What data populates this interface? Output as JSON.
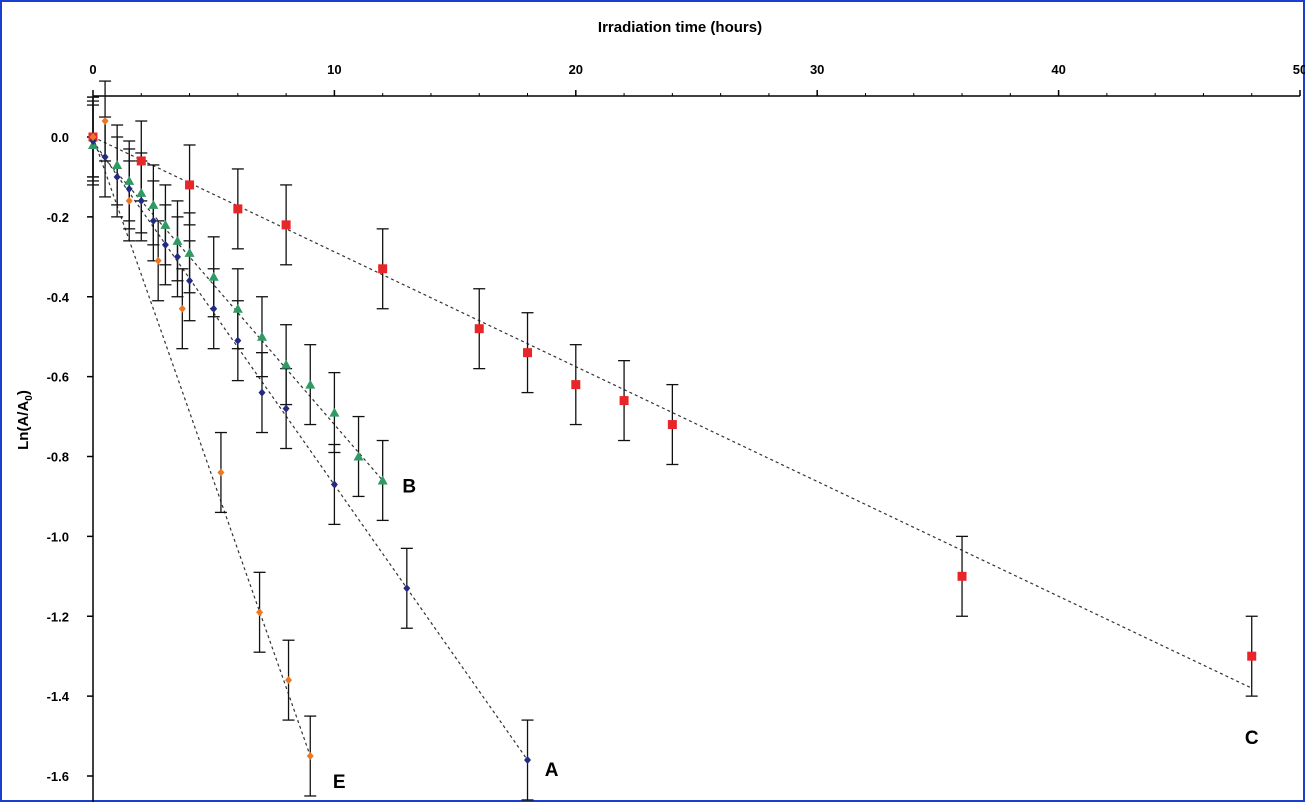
{
  "chart_data": {
    "type": "scatter",
    "xlabel": "Irradiation time (hours)",
    "ylabel": "Ln(A/A",
    "ylabel_sub": "0",
    "ylabel_close": ")",
    "xlim": [
      0,
      50
    ],
    "ylim": [
      -1.6,
      0.0
    ],
    "x_ticks": [
      "0",
      "10",
      "20",
      "30",
      "40",
      "50"
    ],
    "y_ticks": [
      "0.0",
      "-0.2",
      "-0.4",
      "-0.6",
      "-0.8",
      "-1.0",
      "-1.2",
      "-1.4",
      "-1.6"
    ],
    "x_axis_position": "top",
    "grid": false,
    "error_bar": 0.1,
    "series": [
      {
        "name": "C",
        "color": "#e8262a",
        "marker": "square",
        "x": [
          0,
          2,
          4,
          6,
          8,
          12,
          16,
          18,
          20,
          22,
          24,
          36,
          48
        ],
        "y": [
          0.0,
          -0.06,
          -0.12,
          -0.18,
          -0.22,
          -0.33,
          -0.48,
          -0.54,
          -0.62,
          -0.66,
          -0.72,
          -1.1,
          -1.3
        ],
        "fit": [
          [
            0,
            0.0
          ],
          [
            48,
            -1.38
          ]
        ]
      },
      {
        "name": "B",
        "color": "#2f9a62",
        "marker": "triangle",
        "x": [
          0,
          1,
          1.5,
          2,
          2.5,
          3,
          3.5,
          4,
          5,
          6,
          7,
          8,
          9,
          10,
          11,
          12
        ],
        "y": [
          -0.02,
          -0.07,
          -0.11,
          -0.14,
          -0.17,
          -0.22,
          -0.26,
          -0.29,
          -0.35,
          -0.43,
          -0.5,
          -0.57,
          -0.62,
          -0.69,
          -0.8,
          -0.86
        ],
        "fit": [
          [
            0,
            -0.02
          ],
          [
            12,
            -0.86
          ]
        ]
      },
      {
        "name": "A",
        "color": "#222a82",
        "marker": "diamond",
        "x": [
          0,
          0.5,
          1,
          1.5,
          2,
          2.5,
          3,
          3.5,
          4,
          5,
          6,
          7,
          8,
          10,
          13,
          18
        ],
        "y": [
          -0.01,
          -0.05,
          -0.1,
          -0.13,
          -0.16,
          -0.21,
          -0.27,
          -0.3,
          -0.36,
          -0.43,
          -0.51,
          -0.64,
          -0.68,
          -0.87,
          -1.13,
          -1.56
        ],
        "fit": [
          [
            0,
            -0.01
          ],
          [
            18,
            -1.56
          ]
        ]
      },
      {
        "name": "E",
        "color": "#ee7722",
        "marker": "diamond",
        "x": [
          0,
          0.5,
          1.5,
          2.7,
          3.7,
          5.3,
          6.9,
          8.1,
          9
        ],
        "y": [
          0.0,
          0.04,
          -0.16,
          -0.31,
          -0.43,
          -0.84,
          -1.19,
          -1.36,
          -1.55
        ],
        "fit": [
          [
            0,
            0.0
          ],
          [
            9,
            -1.55
          ]
        ]
      }
    ],
    "labels": [
      {
        "text": "B",
        "x": 13.1,
        "y": -0.89
      },
      {
        "text": "A",
        "x": 19.0,
        "y": -1.6
      },
      {
        "text": "E",
        "x": 10.2,
        "y": -1.63
      },
      {
        "text": "C",
        "x": 48.0,
        "y": -1.52
      }
    ]
  }
}
